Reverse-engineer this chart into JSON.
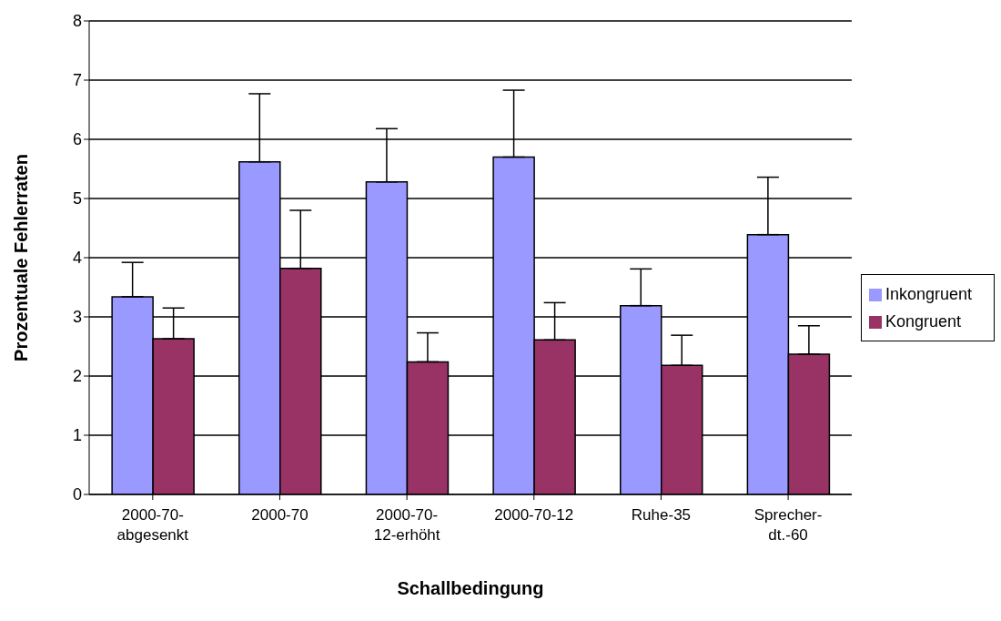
{
  "chart_data": {
    "type": "bar",
    "xlabel": "Schallbedingung",
    "ylabel": "Prozentuale Fehlerraten",
    "categories": [
      "2000-70-abgesenkt",
      "2000-70",
      "2000-70-12-erhöht",
      "2000-70-12",
      "Ruhe-35",
      "Sprecher-dt.-60"
    ],
    "series": [
      {
        "name": "Inkongruent",
        "color": "#9999ff",
        "values": [
          3.34,
          5.62,
          5.28,
          5.7,
          3.19,
          4.39
        ],
        "errors": [
          [
            3.34,
            3.92
          ],
          [
            5.62,
            6.77
          ],
          [
            5.28,
            6.18
          ],
          [
            5.7,
            6.83
          ],
          [
            3.19,
            3.81
          ],
          [
            4.39,
            5.36
          ]
        ]
      },
      {
        "name": "Kongruent",
        "color": "#993366",
        "values": [
          2.63,
          3.82,
          2.24,
          2.61,
          2.18,
          2.37
        ],
        "errors": [
          [
            2.63,
            3.15
          ],
          [
            3.82,
            4.8
          ],
          [
            2.24,
            2.73
          ],
          [
            2.61,
            3.24
          ],
          [
            2.18,
            2.69
          ],
          [
            2.37,
            2.85
          ]
        ]
      }
    ],
    "ylim": [
      0,
      8
    ],
    "yticks": [
      0,
      1,
      2,
      3,
      4,
      5,
      6,
      7,
      8
    ],
    "grid": "y",
    "legend": "right"
  }
}
